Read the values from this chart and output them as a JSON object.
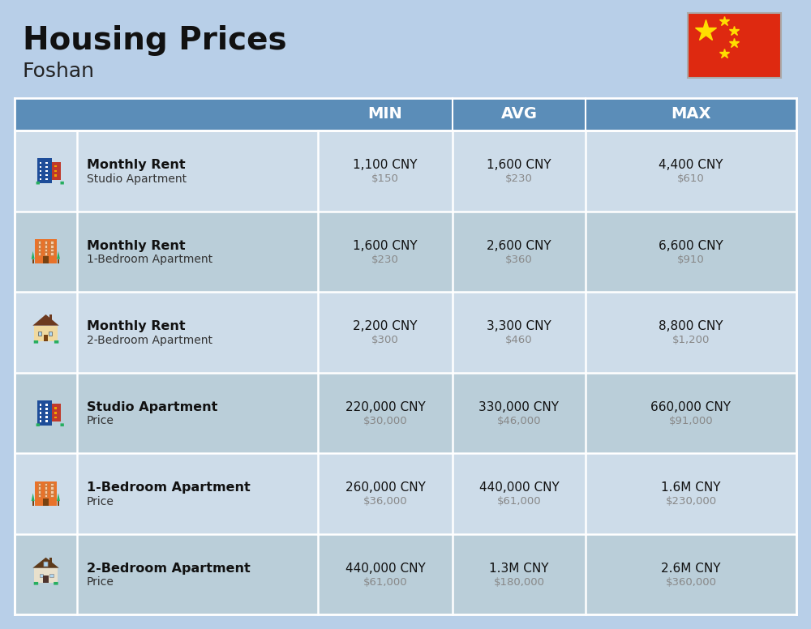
{
  "title": "Housing Prices",
  "subtitle": "Foshan",
  "bg_color": "#b8cfe8",
  "header_bg": "#5b8db8",
  "header_text_color": "#ffffff",
  "row_bg_light": "#cddce9",
  "row_bg_dark": "#baced9",
  "col_headers": [
    "MIN",
    "AVG",
    "MAX"
  ],
  "rows": [
    {
      "label_bold": "Monthly Rent",
      "label_sub": "Studio Apartment",
      "min_cny": "1,100 CNY",
      "min_usd": "$150",
      "avg_cny": "1,600 CNY",
      "avg_usd": "$230",
      "max_cny": "4,400 CNY",
      "max_usd": "$610",
      "icon_type": "studio_blue"
    },
    {
      "label_bold": "Monthly Rent",
      "label_sub": "1-Bedroom Apartment",
      "min_cny": "1,600 CNY",
      "min_usd": "$230",
      "avg_cny": "2,600 CNY",
      "avg_usd": "$360",
      "max_cny": "6,600 CNY",
      "max_usd": "$910",
      "icon_type": "apt_orange"
    },
    {
      "label_bold": "Monthly Rent",
      "label_sub": "2-Bedroom Apartment",
      "min_cny": "2,200 CNY",
      "min_usd": "$300",
      "avg_cny": "3,300 CNY",
      "avg_usd": "$460",
      "max_cny": "8,800 CNY",
      "max_usd": "$1,200",
      "icon_type": "house_beige"
    },
    {
      "label_bold": "Studio Apartment",
      "label_sub": "Price",
      "min_cny": "220,000 CNY",
      "min_usd": "$30,000",
      "avg_cny": "330,000 CNY",
      "avg_usd": "$46,000",
      "max_cny": "660,000 CNY",
      "max_usd": "$91,000",
      "icon_type": "studio_blue"
    },
    {
      "label_bold": "1-Bedroom Apartment",
      "label_sub": "Price",
      "min_cny": "260,000 CNY",
      "min_usd": "$36,000",
      "avg_cny": "440,000 CNY",
      "avg_usd": "$61,000",
      "max_cny": "1.6M CNY",
      "max_usd": "$230,000",
      "icon_type": "apt_orange"
    },
    {
      "label_bold": "2-Bedroom Apartment",
      "label_sub": "Price",
      "min_cny": "440,000 CNY",
      "min_usd": "$61,000",
      "avg_cny": "1.3M CNY",
      "avg_usd": "$180,000",
      "max_cny": "2.6M CNY",
      "max_usd": "$360,000",
      "icon_type": "house_brown"
    }
  ]
}
